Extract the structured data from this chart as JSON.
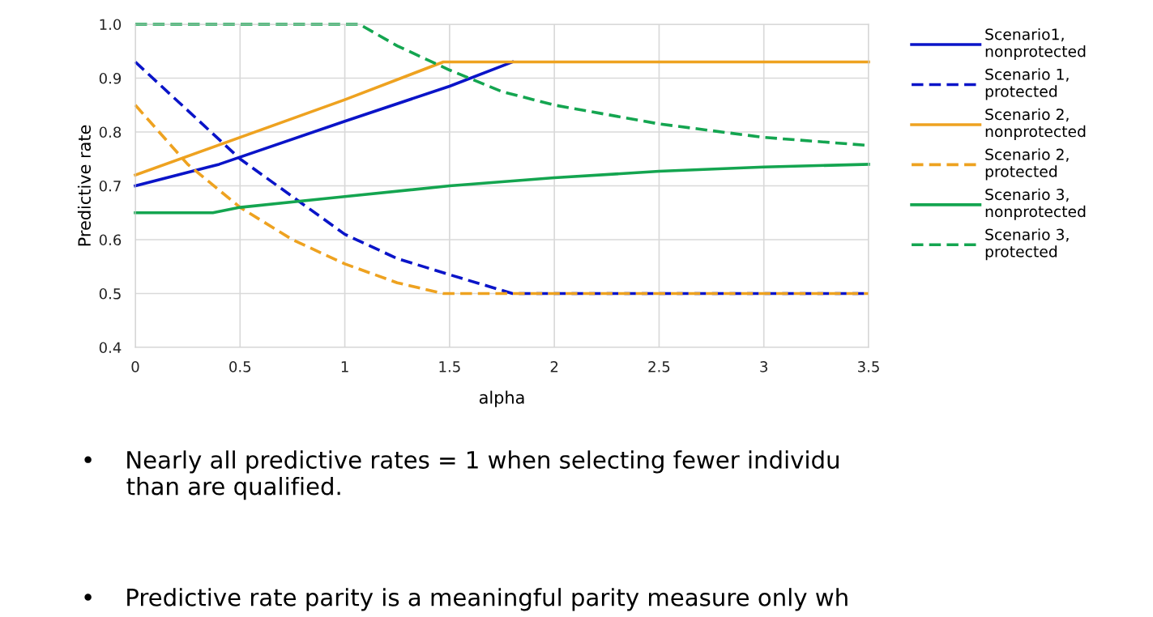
{
  "chart_data": {
    "type": "line",
    "xlabel": "alpha",
    "ylabel": "Predictive rate",
    "xlim": [
      0,
      3.5
    ],
    "xticks": [
      0,
      0.5,
      1,
      1.5,
      2,
      2.5,
      3,
      3.5
    ],
    "ylim": [
      0.4,
      1.0
    ],
    "yticks": [
      {
        "value": 0.4,
        "label": "0.4"
      },
      {
        "value": 0.5,
        "label": "0.5"
      },
      {
        "value": 0.6,
        "label": "0.6"
      },
      {
        "value": 0.7,
        "label": "0.7"
      },
      {
        "value": 0.8,
        "label": "0.8"
      },
      {
        "value": 0.9,
        "label": "0.9"
      },
      {
        "value": 1.0,
        "label": "1.0"
      }
    ],
    "grid": true,
    "legend": "right",
    "marker": "none",
    "series": [
      {
        "name": "Scenario1,\nnonprotected",
        "color": "#0a14c8",
        "line_style": "solid",
        "x": [
          0,
          0.4,
          1,
          1.5,
          1.8
        ],
        "values": [
          0.7,
          0.74,
          0.82,
          0.885,
          0.93
        ]
      },
      {
        "name": "Scenario 1,\nprotected",
        "color": "#0a14c8",
        "line_style": "dashed",
        "x": [
          0,
          0.25,
          0.5,
          0.75,
          1,
          1.25,
          1.5,
          1.8,
          3.5
        ],
        "values": [
          0.93,
          0.84,
          0.75,
          0.68,
          0.61,
          0.565,
          0.535,
          0.5,
          0.5
        ]
      },
      {
        "name": "Scenario 2,\nnonprotected",
        "color": "#eea220",
        "line_style": "solid",
        "x": [
          0,
          1,
          1.47,
          3.5
        ],
        "values": [
          0.72,
          0.86,
          0.93,
          0.93
        ]
      },
      {
        "name": "Scenario 2,\nprotected",
        "color": "#eea220",
        "line_style": "dashed",
        "x": [
          0,
          0.25,
          0.5,
          0.75,
          1,
          1.25,
          1.47,
          3.5
        ],
        "values": [
          0.85,
          0.74,
          0.66,
          0.6,
          0.555,
          0.52,
          0.5,
          0.5
        ]
      },
      {
        "name": "Scenario 3,\nnonprotected",
        "color": "#14a550",
        "line_style": "solid",
        "x": [
          0,
          0.37,
          0.5,
          1,
          1.5,
          2,
          2.5,
          3,
          3.5
        ],
        "values": [
          0.65,
          0.65,
          0.66,
          0.68,
          0.7,
          0.715,
          0.727,
          0.735,
          0.74
        ]
      },
      {
        "name": "Scenario 3,\nprotected",
        "color": "#14a550",
        "line_style": "dashed",
        "x": [
          0,
          1.07,
          1.25,
          1.5,
          1.75,
          2,
          2.5,
          3,
          3.5
        ],
        "values": [
          1.0,
          1.0,
          0.96,
          0.915,
          0.875,
          0.85,
          0.815,
          0.79,
          0.775
        ]
      }
    ],
    "annotations": [
      "•    Nearly all predictive rates = 1 when selecting fewer individu\n      than are qualified.",
      "•    Predictive rate parity is a meaningful parity measure only wh"
    ]
  }
}
